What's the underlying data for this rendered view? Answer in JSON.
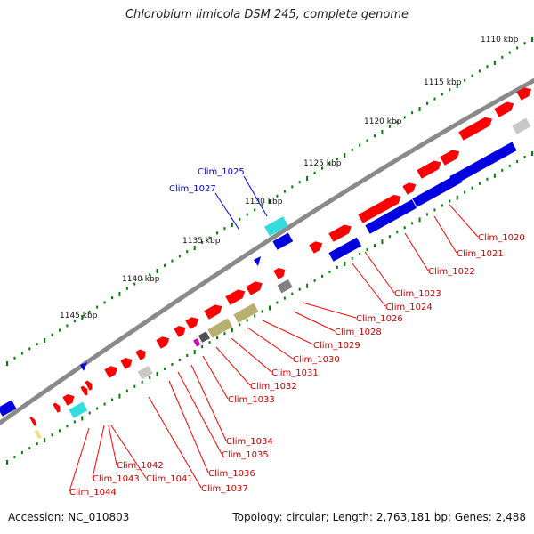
{
  "title": "Chlorobium limicola DSM 245, complete genome",
  "footer": {
    "accession": "Accession: NC_010803",
    "summary": "Topology: circular; Length: 2,763,181 bp; Genes: 2,488"
  },
  "colors": {
    "forward_gene": "#ff0000",
    "reverse_gene": "#0000e0",
    "rna_cyan": "#33dddd",
    "olive": "#b8b070",
    "gray": "#808080",
    "light_gray": "#c8c8c8",
    "magenta": "#e000c0",
    "yellow": "#f0e080",
    "backbone": "#808080",
    "tick": "#008000",
    "label_forward": "#cc0000",
    "label_reverse": "#0000cc"
  },
  "scale": {
    "unit": "kbp",
    "labels": [
      "1110 kbp",
      "1115 kbp",
      "1120 kbp",
      "1125 kbp",
      "1130 kbp",
      "1135 kbp",
      "1140 kbp",
      "1145 kbp"
    ]
  },
  "genes": {
    "forward": [
      "Clim_1020",
      "Clim_1021",
      "Clim_1022",
      "Clim_1023",
      "Clim_1024",
      "Clim_1026",
      "Clim_1028",
      "Clim_1029",
      "Clim_1030",
      "Clim_1031",
      "Clim_1032",
      "Clim_1033",
      "Clim_1034",
      "Clim_1035",
      "Clim_1036",
      "Clim_1037",
      "Clim_1041",
      "Clim_1042",
      "Clim_1043",
      "Clim_1044"
    ],
    "reverse": [
      "Clim_1025",
      "Clim_1027"
    ]
  }
}
